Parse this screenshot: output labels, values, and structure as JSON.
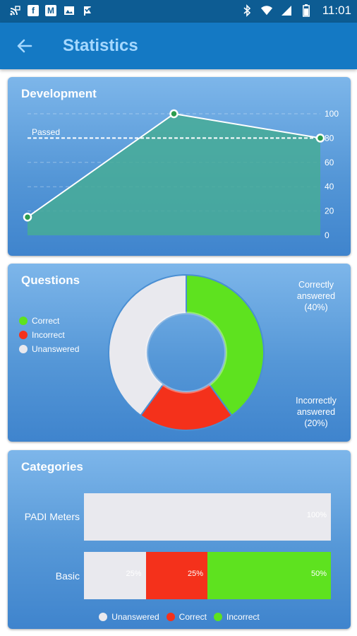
{
  "status_bar": {
    "time": "11:01"
  },
  "app_bar": {
    "title": "Statistics"
  },
  "development": {
    "title": "Development",
    "passed_label": "Passed",
    "y_ticks": [
      "100",
      "80",
      "60",
      "40",
      "20",
      "0"
    ]
  },
  "questions": {
    "title": "Questions",
    "legend": [
      {
        "label": "Correct",
        "color": "#5ee21f"
      },
      {
        "label": "Incorrect",
        "color": "#f4311b"
      },
      {
        "label": "Unanswered",
        "color": "#e9e9ee"
      }
    ],
    "correct_label": [
      "Correctly",
      "answered",
      "(40%)"
    ],
    "incorrect_label": [
      "Incorrectly",
      "answered",
      "(20%)"
    ]
  },
  "categories": {
    "title": "Categories",
    "rows": [
      {
        "label": "PADI Meters",
        "segments": [
          {
            "value": 100,
            "text": "100%",
            "color": "#e9e9ee"
          }
        ]
      },
      {
        "label": "Basic",
        "segments": [
          {
            "value": 25,
            "text": "25%",
            "color": "#e9e9ee"
          },
          {
            "value": 25,
            "text": "25%",
            "color": "#f4311b"
          },
          {
            "value": 50,
            "text": "50%",
            "color": "#5ee21f"
          }
        ]
      }
    ],
    "legend": [
      {
        "label": "Unanswered",
        "color": "#e9e9ee"
      },
      {
        "label": "Correct",
        "color": "#f4311b"
      },
      {
        "label": "Incorrect",
        "color": "#5ee21f"
      }
    ]
  },
  "chart_data": [
    {
      "type": "area",
      "title": "Development",
      "x": [
        1,
        2,
        3
      ],
      "series": [
        {
          "values": [
            15,
            100,
            80
          ]
        }
      ],
      "ylim": [
        0,
        100
      ],
      "y_ticks": [
        0,
        20,
        40,
        60,
        80,
        100
      ],
      "reference_line": {
        "label": "Passed",
        "value": 80
      },
      "grid": true
    },
    {
      "type": "pie",
      "title": "Questions",
      "slices": [
        {
          "label": "Correct",
          "value": 40,
          "color": "#5ee21f"
        },
        {
          "label": "Incorrect",
          "value": 20,
          "color": "#f4311b"
        },
        {
          "label": "Unanswered",
          "value": 40,
          "color": "#e9e9ee"
        }
      ],
      "legend": "left"
    },
    {
      "type": "bar",
      "title": "Categories",
      "categories": [
        "PADI Meters",
        "Basic"
      ],
      "series": [
        {
          "name": "Unanswered",
          "values": [
            100,
            25
          ]
        },
        {
          "name": "Correct",
          "values": [
            0,
            25
          ]
        },
        {
          "name": "Incorrect",
          "values": [
            0,
            50
          ]
        }
      ],
      "legend": "bottom"
    }
  ]
}
